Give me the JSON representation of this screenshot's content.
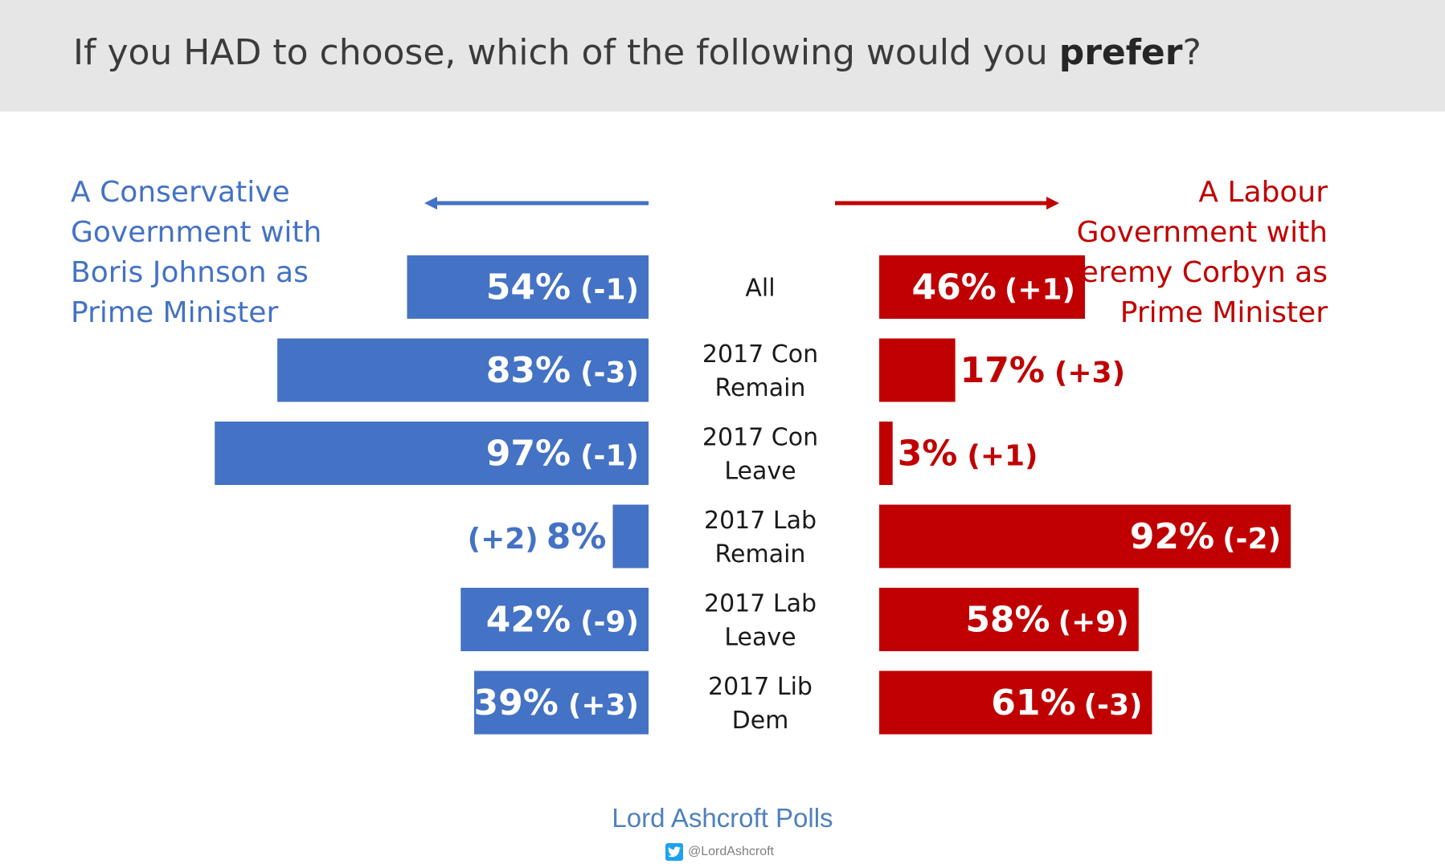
{
  "title": {
    "text": "If you HAD to choose, which of the following would you ",
    "bold": "prefer",
    "end": "?"
  },
  "left_label": "A Conservative Government with Boris Johnson as Prime Minister",
  "right_label": "A Labour Government with Jeremy Corbyn as Prime Minister",
  "footer": {
    "brand": "Lord Ashcroft Polls",
    "handle": "@LordAshcroft"
  },
  "colors": {
    "conservative": "#4472c4",
    "labour": "#c00000",
    "header_bg": "#e7e6e6"
  },
  "chart_data": {
    "type": "bar",
    "orientation": "diverging-horizontal",
    "categories": [
      [
        "All"
      ],
      [
        "2017 Con",
        "Remain"
      ],
      [
        "2017 Con",
        "Leave"
      ],
      [
        "2017 Lab",
        "Remain"
      ],
      [
        "2017 Lab",
        "Leave"
      ],
      [
        "2017 Lib",
        "Dem"
      ]
    ],
    "series": [
      {
        "name": "A Conservative Government with Boris Johnson as Prime Minister",
        "direction": "left",
        "color": "#4472c4",
        "values": [
          54,
          83,
          97,
          8,
          42,
          39
        ],
        "labels": [
          "54%",
          "83%",
          "97%",
          "8%",
          "42%",
          "39%"
        ],
        "changes": [
          "(-1)",
          "(-3)",
          "(-1)",
          "(+2)",
          "(-9)",
          "(+3)"
        ]
      },
      {
        "name": "A Labour Government with Jeremy Corbyn as Prime Minister",
        "direction": "right",
        "color": "#c00000",
        "values": [
          46,
          17,
          3,
          92,
          58,
          61
        ],
        "labels": [
          "46%",
          "17%",
          "3%",
          "92%",
          "58%",
          "61%"
        ],
        "changes": [
          "(+1)",
          "(+3)",
          "(+1)",
          "(-2)",
          "(+9)",
          "(-3)"
        ]
      }
    ],
    "xlim": [
      0,
      100
    ],
    "grid": false
  }
}
